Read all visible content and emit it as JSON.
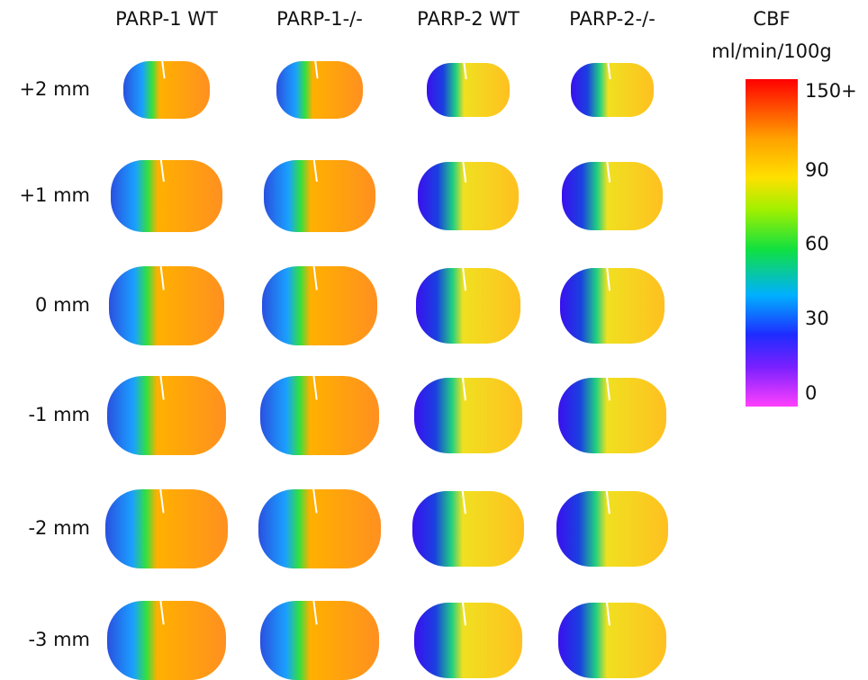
{
  "columns": [
    "PARP-1 WT",
    "PARP-1-/-",
    "PARP-2 WT",
    "PARP-2-/-"
  ],
  "rows": [
    "+2 mm",
    "+1 mm",
    "0 mm",
    "-1 mm",
    "-2 mm",
    "-3 mm"
  ],
  "colorbar": {
    "title": "CBF",
    "unit": "ml/min/100g",
    "labels": [
      "150+",
      "90",
      "60",
      "30",
      "0"
    ]
  }
}
